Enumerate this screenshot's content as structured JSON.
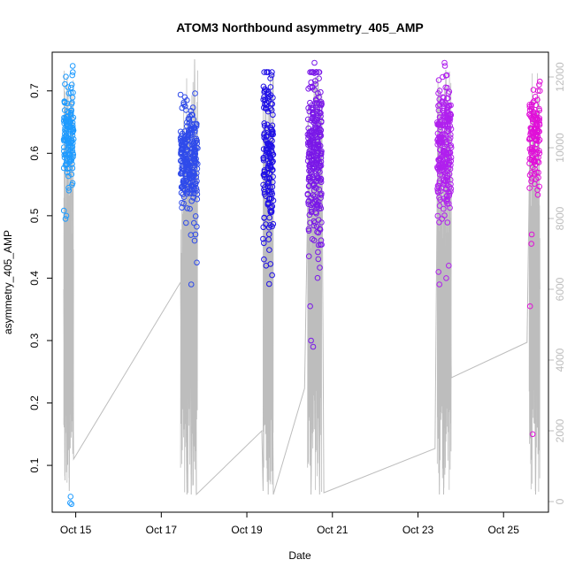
{
  "chart_data": {
    "type": "scatter",
    "title": "ATOM3 Northbound asymmetry_405_AMP",
    "xlabel": "Date",
    "ylabel": "asymmetry_405_AMP",
    "x_ticks": [
      "Oct 15",
      "Oct 17",
      "Oct 19",
      "Oct 21",
      "Oct 23",
      "Oct 25"
    ],
    "x_tick_days": [
      15,
      17,
      19,
      21,
      23,
      25
    ],
    "xlim": [
      14.45,
      26.05
    ],
    "ylim": [
      0.025,
      0.762
    ],
    "y_ticks": [
      0.1,
      0.2,
      0.3,
      0.4,
      0.5,
      0.6,
      0.7
    ],
    "y_tick_labels": [
      "0.1",
      "0.2",
      "0.3",
      "0.4",
      "0.5",
      "0.6",
      "0.7"
    ],
    "y2lim": [
      -300,
      12700
    ],
    "y2_ticks": [
      0,
      2000,
      4000,
      6000,
      8000,
      10000,
      12000
    ],
    "y2_tick_labels": [
      "0",
      "2000",
      "4000",
      "6000",
      "8000",
      "10000",
      "12000"
    ],
    "grid": false,
    "legend": "none",
    "colors": {
      "line": "#bdbdbd",
      "axis": "#000000",
      "right_axis": "#bdbdbd",
      "palette": [
        "#00BFFF",
        "#1E90FF",
        "#0000EE",
        "#5B00EE",
        "#8A2BE2",
        "#CC00EE",
        "#FF00CC"
      ]
    },
    "clusters": [
      {
        "start": 14.72,
        "end": 14.95,
        "color": "#1E9BFF",
        "center": 0.63,
        "spread": 0.035,
        "n": 140,
        "outliers": [
          [
            14.93,
            0.74
          ],
          [
            14.92,
            0.725
          ],
          [
            14.91,
            0.71
          ],
          [
            14.88,
            0.05
          ],
          [
            14.87,
            0.04
          ],
          [
            14.9,
            0.038
          ],
          [
            14.76,
            0.495
          ],
          [
            14.78,
            0.5
          ],
          [
            14.8,
            0.68
          ]
        ]
      },
      {
        "start": 17.45,
        "end": 17.85,
        "color": "#2F4BEA",
        "center": 0.585,
        "spread": 0.04,
        "n": 260,
        "outliers": [
          [
            17.7,
            0.39
          ],
          [
            17.83,
            0.425
          ],
          [
            17.8,
            0.47
          ],
          [
            17.78,
            0.46
          ],
          [
            17.55,
            0.69
          ],
          [
            17.6,
            0.685
          ]
        ]
      },
      {
        "start": 19.38,
        "end": 19.62,
        "color": "#2010E6",
        "center": 0.59,
        "spread": 0.07,
        "n": 170,
        "outliers": [
          [
            19.4,
            0.43
          ],
          [
            19.45,
            0.42
          ],
          [
            19.55,
            0.72
          ],
          [
            19.58,
            0.725
          ]
        ]
      },
      {
        "start": 20.42,
        "end": 20.75,
        "color": "#7A18E8",
        "center": 0.6,
        "spread": 0.07,
        "n": 280,
        "outliers": [
          [
            20.48,
            0.355
          ],
          [
            20.5,
            0.3
          ],
          [
            20.55,
            0.29
          ],
          [
            20.58,
            0.745
          ],
          [
            20.45,
            0.435
          ]
        ]
      },
      {
        "start": 23.45,
        "end": 23.78,
        "color": "#B020EE",
        "center": 0.6,
        "spread": 0.055,
        "n": 240,
        "outliers": [
          [
            23.5,
            0.39
          ],
          [
            23.48,
            0.41
          ],
          [
            23.62,
            0.745
          ],
          [
            23.63,
            0.74
          ],
          [
            23.66,
            0.4
          ],
          [
            23.72,
            0.42
          ]
        ]
      },
      {
        "start": 25.6,
        "end": 25.85,
        "color": "#E010D8",
        "center": 0.625,
        "spread": 0.035,
        "n": 130,
        "outliers": [
          [
            25.68,
            0.15
          ],
          [
            25.62,
            0.355
          ],
          [
            25.65,
            0.455
          ],
          [
            25.66,
            0.47
          ],
          [
            25.85,
            0.715
          ],
          [
            25.83,
            0.71
          ]
        ]
      }
    ],
    "line_path": [
      [
        14.72,
        6000
      ],
      [
        14.75,
        600
      ],
      [
        14.8,
        12000
      ],
      [
        14.85,
        300
      ],
      [
        14.9,
        11500
      ],
      [
        14.95,
        1200
      ],
      [
        17.45,
        6200
      ],
      [
        17.48,
        2500
      ],
      [
        17.52,
        10000
      ],
      [
        17.6,
        200
      ],
      [
        17.65,
        11000
      ],
      [
        17.7,
        200
      ],
      [
        17.78,
        12500
      ],
      [
        17.82,
        200
      ],
      [
        19.35,
        2000
      ],
      [
        19.38,
        300
      ],
      [
        19.45,
        11000
      ],
      [
        19.5,
        200
      ],
      [
        19.55,
        12000
      ],
      [
        19.62,
        200
      ],
      [
        20.35,
        3200
      ],
      [
        20.45,
        10500
      ],
      [
        20.5,
        200
      ],
      [
        20.6,
        12000
      ],
      [
        20.7,
        200
      ],
      [
        20.75,
        11500
      ],
      [
        20.8,
        250
      ],
      [
        23.4,
        1500
      ],
      [
        23.45,
        9000
      ],
      [
        23.5,
        200
      ],
      [
        23.55,
        11000
      ],
      [
        23.6,
        200
      ],
      [
        23.65,
        12200
      ],
      [
        23.72,
        9000
      ],
      [
        23.78,
        3500
      ],
      [
        25.55,
        4500
      ],
      [
        25.6,
        8800
      ],
      [
        25.65,
        1500
      ],
      [
        25.7,
        9500
      ],
      [
        25.75,
        200
      ],
      [
        25.8,
        9000
      ],
      [
        25.85,
        6000
      ]
    ]
  }
}
